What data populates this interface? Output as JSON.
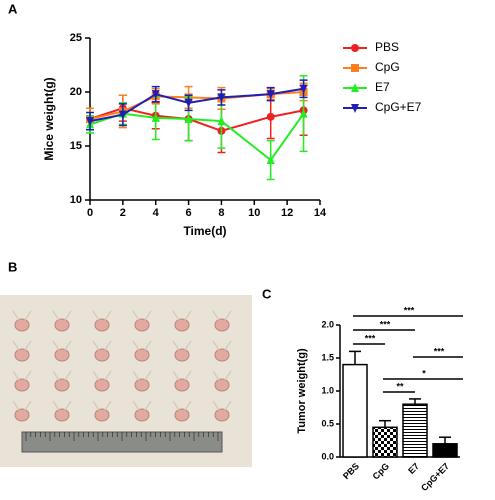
{
  "panels": [
    "A",
    "B",
    "C"
  ],
  "chart_data": [
    {
      "type": "line",
      "xlabel": "Time(d)",
      "ylabel": "Mice weight(g)",
      "x": [
        0,
        2,
        4,
        6,
        8,
        11,
        13
      ],
      "xlim": [
        0,
        14
      ],
      "xticks": [
        0,
        2,
        4,
        6,
        8,
        10,
        12,
        14
      ],
      "ylim": [
        10,
        25
      ],
      "yticks": [
        10,
        15,
        20,
        25
      ],
      "legend": "right",
      "series": [
        {
          "name": "PBS",
          "color": "#ee2222",
          "marker": "circle",
          "values": [
            17.5,
            18.5,
            17.8,
            17.5,
            16.4,
            17.7,
            18.3
          ],
          "errors": [
            1.0,
            1.2,
            1.2,
            2.0,
            2.0,
            2.0,
            2.3
          ]
        },
        {
          "name": "CpG",
          "color": "#ff7f1e",
          "marker": "square",
          "values": [
            17.5,
            18.2,
            19.6,
            19.5,
            19.4,
            19.8,
            20.0
          ],
          "errors": [
            1.0,
            1.5,
            0.7,
            1.0,
            1.0,
            0.5,
            0.8
          ]
        },
        {
          "name": "E7",
          "color": "#22ee22",
          "marker": "triangle-up",
          "values": [
            17.0,
            18.0,
            17.6,
            17.5,
            17.3,
            13.7,
            18.0
          ],
          "errors": [
            0.8,
            1.0,
            2.0,
            2.0,
            2.5,
            1.8,
            3.5
          ]
        },
        {
          "name": "CpG+E7",
          "color": "#1f1fb4",
          "marker": "triangle-down",
          "values": [
            17.3,
            17.9,
            19.8,
            19.0,
            19.5,
            19.8,
            20.3
          ],
          "errors": [
            0.8,
            1.0,
            0.7,
            0.7,
            0.7,
            0.6,
            0.8
          ]
        }
      ]
    },
    {
      "type": "bar",
      "ylabel": "Tumor weight(g)",
      "categories": [
        "PBS",
        "CpG",
        "E7",
        "CpG+E7"
      ],
      "values": [
        1.4,
        0.45,
        0.8,
        0.2
      ],
      "errors": [
        0.2,
        0.1,
        0.08,
        0.1
      ],
      "patterns": [
        "none",
        "checker",
        "hlines",
        "solid"
      ],
      "ylim": [
        0,
        2.0
      ],
      "yticks": [
        {
          "value": 0,
          "label": "0.0"
        },
        {
          "value": 0.5,
          "label": "0.5"
        },
        {
          "value": 1.0,
          "label": "1.0"
        },
        {
          "value": 1.5,
          "label": "1.5"
        },
        {
          "value": 2.0,
          "label": "2.0"
        }
      ],
      "comparisons": [
        {
          "pair": [
            0,
            3
          ],
          "label": "***"
        },
        {
          "pair": [
            0,
            2
          ],
          "label": "***"
        },
        {
          "pair": [
            0,
            1
          ],
          "label": "***"
        },
        {
          "pair": [
            2,
            3
          ],
          "label": "***"
        },
        {
          "pair": [
            1,
            3
          ],
          "label": "*"
        },
        {
          "pair": [
            1,
            2
          ],
          "label": "**"
        }
      ]
    }
  ]
}
